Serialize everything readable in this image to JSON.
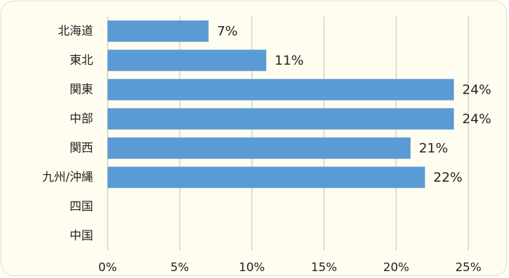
{
  "chart_data": {
    "type": "bar",
    "orientation": "horizontal",
    "categories": [
      "北海道",
      "東北",
      "関東",
      "中部",
      "関西",
      "九州/沖縄",
      "四国",
      "中国"
    ],
    "values": [
      7,
      11,
      24,
      24,
      21,
      22,
      null,
      null
    ],
    "data_labels": [
      "7%",
      "11%",
      "24%",
      "24%",
      "21%",
      "22%",
      "",
      ""
    ],
    "xlim": [
      0,
      25
    ],
    "x_ticks": [
      0,
      5,
      10,
      15,
      20,
      25
    ],
    "x_tick_labels": [
      "0%",
      "5%",
      "10%",
      "15%",
      "20%",
      "25%"
    ],
    "title": "",
    "xlabel": "",
    "ylabel": "",
    "grid": "vertical",
    "legend": "none",
    "colors": {
      "bar": "#5b9bd5",
      "background": "#fffdf0",
      "gridline": "#d4d2c8",
      "border": "#e2dcb6",
      "text": "#222222"
    }
  }
}
